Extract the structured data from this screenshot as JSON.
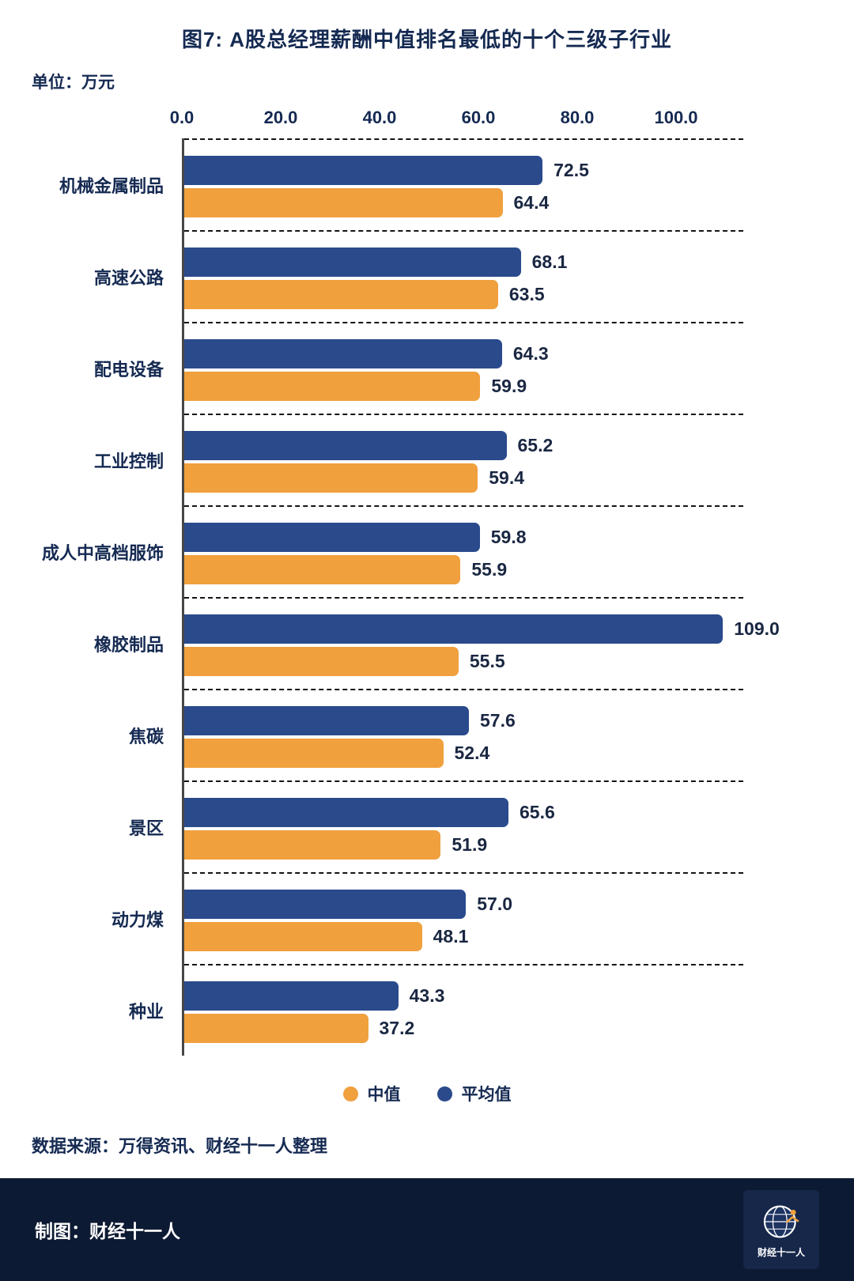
{
  "header": {
    "title": "图7: A股总经理薪酬中值排名最低的十个三级子行业",
    "unit_label": "单位：万元"
  },
  "chart_data": {
    "type": "bar",
    "orientation": "horizontal",
    "title": "图7: A股总经理薪酬中值排名最低的十个三级子行业",
    "unit": "万元",
    "axis_max": 113.6,
    "x_tick_labels": [
      "0.0",
      "20.0",
      "40.0",
      "60.0",
      "80.0",
      "100.0"
    ],
    "grid": "dashed-horizontal-separators",
    "legend_position": "bottom",
    "categories": [
      "机械金属制品",
      "高速公路",
      "配电设备",
      "工业控制",
      "成人中高档服饰",
      "橡胶制品",
      "焦碳",
      "景区",
      "动力煤",
      "种业"
    ],
    "series": [
      {
        "name": "平均值",
        "color": "#2a4a8c",
        "values": [
          72.5,
          68.1,
          64.3,
          65.2,
          59.8,
          109.0,
          57.6,
          65.6,
          57.0,
          43.3
        ]
      },
      {
        "name": "中值",
        "color": "#f0a03d",
        "values": [
          64.4,
          63.5,
          59.9,
          59.4,
          55.9,
          55.5,
          52.4,
          51.9,
          48.1,
          37.2
        ]
      }
    ],
    "legend": [
      {
        "label": "中值",
        "color": "#f0a03d"
      },
      {
        "label": "平均值",
        "color": "#2a4a8c"
      }
    ]
  },
  "footer": {
    "source": "数据来源：万得资讯、财经十一人整理",
    "credit": "制图：财经十一人",
    "logo_text": "财经十一人"
  },
  "colors": {
    "bar_blue": "#2a4a8c",
    "bar_orange": "#f0a03d",
    "text_navy": "#152a52",
    "footer_bg": "#0d1a33"
  }
}
